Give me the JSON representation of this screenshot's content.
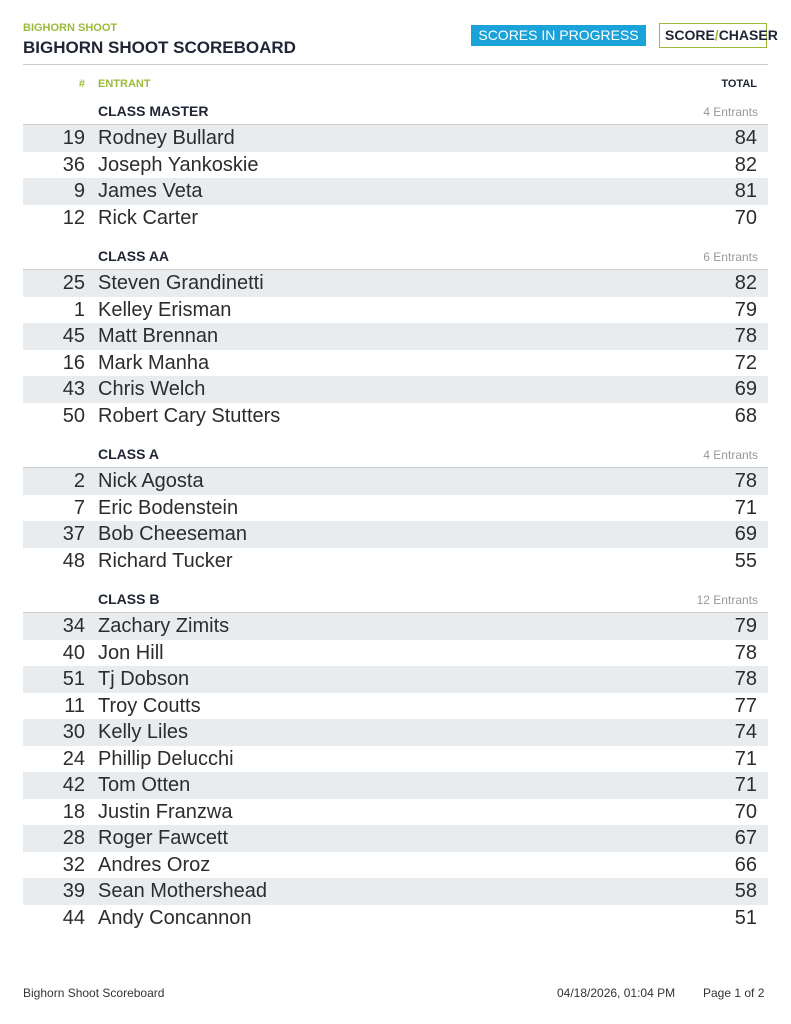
{
  "header": {
    "subtitle": "BIGHORN SHOOT",
    "title": "BIGHORN SHOOT SCOREBOARD",
    "status": "SCORES IN PROGRESS",
    "logo": {
      "left": "SCORE",
      "right": "CHASER"
    }
  },
  "table": {
    "columns": {
      "number": "#",
      "entrant": "ENTRANT",
      "total": "TOTAL"
    },
    "sections": [
      {
        "name": "CLASS MASTER",
        "count": "4 Entrants",
        "rows": [
          [
            19,
            "Rodney Bullard",
            84
          ],
          [
            36,
            "Joseph Yankoskie",
            82
          ],
          [
            9,
            "James Veta",
            81
          ],
          [
            12,
            "Rick Carter",
            70
          ]
        ]
      },
      {
        "name": "CLASS AA",
        "count": "6 Entrants",
        "rows": [
          [
            25,
            "Steven Grandinetti",
            82
          ],
          [
            1,
            "Kelley Erisman",
            79
          ],
          [
            45,
            "Matt Brennan",
            78
          ],
          [
            16,
            "Mark Manha",
            72
          ],
          [
            43,
            "Chris Welch",
            69
          ],
          [
            50,
            "Robert Cary Stutters",
            68
          ]
        ]
      },
      {
        "name": "CLASS A",
        "count": "4 Entrants",
        "rows": [
          [
            2,
            "Nick Agosta",
            78
          ],
          [
            7,
            "Eric Bodenstein",
            71
          ],
          [
            37,
            "Bob Cheeseman",
            69
          ],
          [
            48,
            "Richard Tucker",
            55
          ]
        ]
      },
      {
        "name": "CLASS B",
        "count": "12 Entrants",
        "rows": [
          [
            34,
            "Zachary Zimits",
            79
          ],
          [
            40,
            "Jon Hill",
            78
          ],
          [
            51,
            "Tj Dobson",
            78
          ],
          [
            11,
            "Troy Coutts",
            77
          ],
          [
            30,
            "Kelly Liles",
            74
          ],
          [
            24,
            "Phillip Delucchi",
            71
          ],
          [
            42,
            "Tom Otten",
            71
          ],
          [
            18,
            "Justin Franzwa",
            70
          ],
          [
            28,
            "Roger Fawcett",
            67
          ],
          [
            32,
            "Andres Oroz",
            66
          ],
          [
            39,
            "Sean Mothershead",
            58
          ],
          [
            44,
            "Andy Concannon",
            51
          ]
        ]
      }
    ]
  },
  "footer": {
    "left": "Bighorn Shoot Scoreboard",
    "datetime": "04/18/2026, 01:04 PM",
    "page": "Page 1 of 2"
  }
}
